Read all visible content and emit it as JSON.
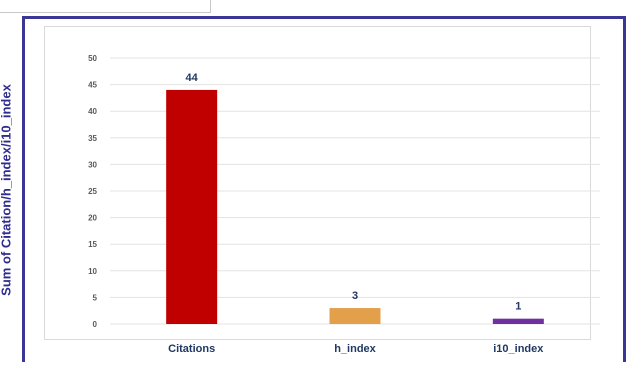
{
  "chart_data": {
    "type": "bar",
    "title": "",
    "xlabel": "",
    "ylabel": "Sum of Citation/h_index/i10_index",
    "categories": [
      "Citations",
      "h_index",
      "i10_index"
    ],
    "values": [
      44,
      3,
      1
    ],
    "colors": [
      "#c00000",
      "#e3a04b",
      "#7030a0"
    ],
    "data_labels": [
      "44",
      "3",
      "1"
    ],
    "ylim": [
      0,
      50
    ],
    "yticks": [
      "0",
      "5",
      "10",
      "15",
      "20",
      "25",
      "30",
      "35",
      "40",
      "45",
      "50"
    ],
    "grid": true,
    "legend": "none"
  }
}
